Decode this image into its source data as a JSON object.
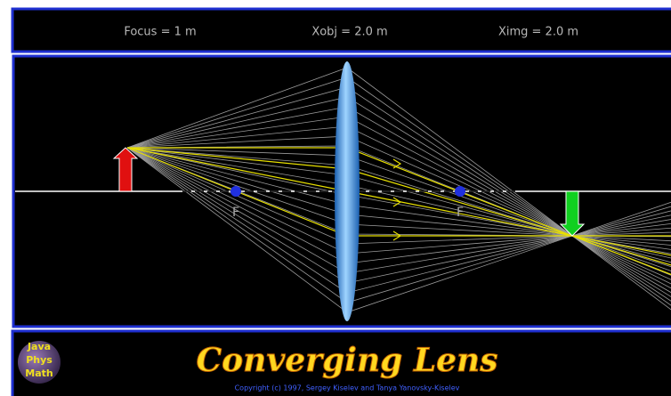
{
  "header": {
    "focus": "Focus = 1 m",
    "xobj": "Xobj = 2.0 m",
    "ximg": "Ximg = 2.0 m"
  },
  "scene": {
    "focus_labels": [
      "F",
      "F"
    ]
  },
  "footer": {
    "logo": [
      "Java",
      "Phys",
      "Math"
    ],
    "title": "Converging Lens",
    "copyright": "Copyright (c) 1997, Sergey Kiselev and Tanya Yanovsky-Kiselev"
  }
}
